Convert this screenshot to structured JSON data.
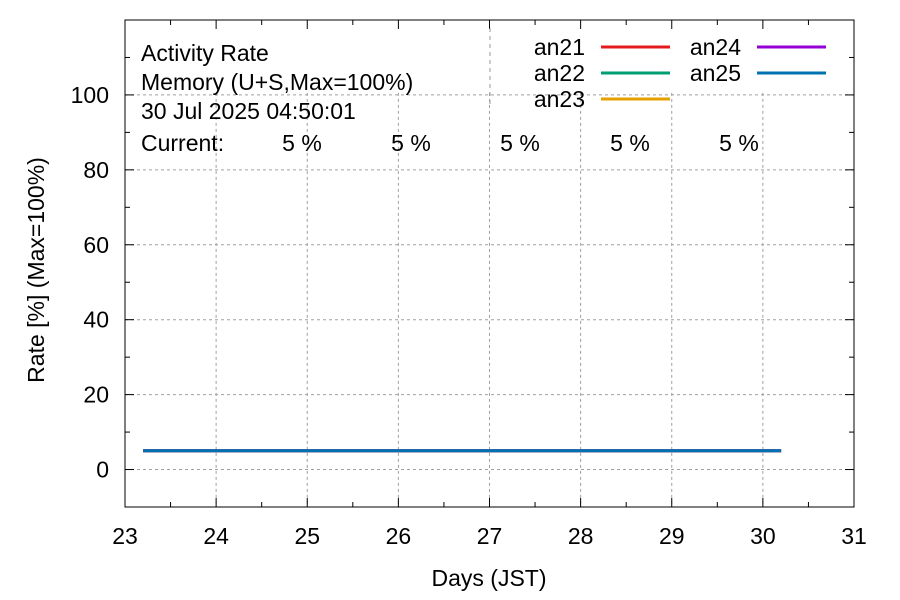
{
  "chart_data": {
    "type": "line",
    "title_lines": [
      "Activity Rate",
      "Memory (U+S,Max=100%)",
      "30 Jul 2025 04:50:01"
    ],
    "current": {
      "label": "Current:",
      "values": [
        "5 %",
        "5 %",
        "5 %",
        "5 %",
        "5 %"
      ]
    },
    "xlabel": "Days (JST)",
    "ylabel": "Rate [%]  (Max=100%)",
    "xlim": [
      23,
      31
    ],
    "ylim": [
      -10,
      120
    ],
    "x_ticks": [
      23,
      24,
      25,
      26,
      27,
      28,
      29,
      30,
      31
    ],
    "y_ticks": [
      0,
      20,
      40,
      60,
      80,
      100
    ],
    "grid": true,
    "legend_position": "top-right",
    "series": [
      {
        "name": "an21",
        "color": "#e41a1c",
        "x": [
          23.2,
          30.2
        ],
        "values": [
          5,
          5
        ]
      },
      {
        "name": "an22",
        "color": "#009e73",
        "x": [
          23.2,
          30.2
        ],
        "values": [
          5,
          5
        ]
      },
      {
        "name": "an23",
        "color": "#e69f00",
        "x": [
          23.2,
          30.2
        ],
        "values": [
          5,
          5
        ]
      },
      {
        "name": "an24",
        "color": "#9400d3",
        "x": [
          23.2,
          30.2
        ],
        "values": [
          5,
          5
        ]
      },
      {
        "name": "an25",
        "color": "#0072b2",
        "x": [
          23.2,
          30.2
        ],
        "values": [
          5,
          5
        ]
      }
    ]
  }
}
